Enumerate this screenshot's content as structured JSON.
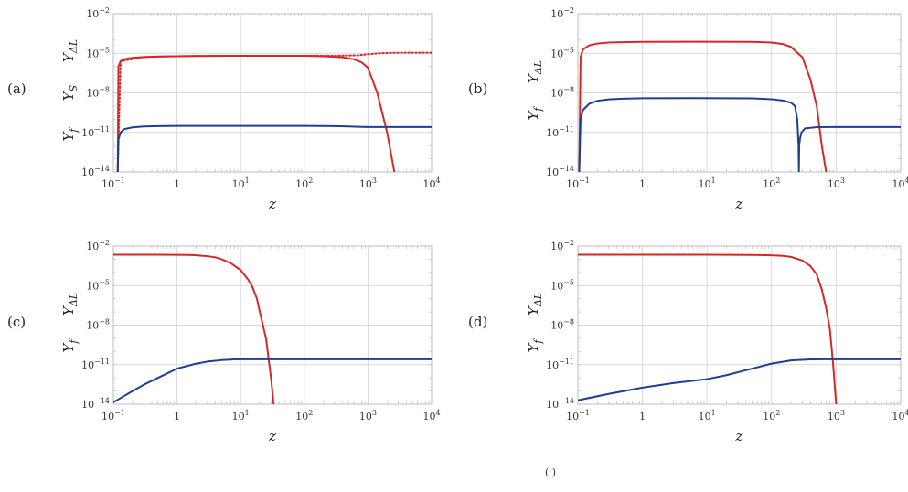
{
  "chart_data": [
    {
      "panel": "(a)",
      "type": "line",
      "xscale": "log",
      "yscale": "log",
      "xlim": [
        0.1,
        10000
      ],
      "ylim": [
        1e-14,
        0.01
      ],
      "x_tick_labels": [
        "10^-1",
        "1",
        "10^1",
        "10^2",
        "10^3",
        "10^4"
      ],
      "y_tick_labels": [
        "10^-14",
        "10^-11",
        "10^-8",
        "10^-5",
        "10^-2"
      ],
      "xlabel": "z",
      "ylabel_parts": [
        "Y_f",
        "Y_S",
        "Y_ΔL"
      ],
      "grid": true,
      "series": [
        {
          "color": "#d62728",
          "style": "solid",
          "x": [
            0.117,
            0.12,
            0.13,
            0.15,
            0.2,
            0.3,
            0.5,
            1,
            2,
            10,
            50,
            100,
            200,
            400,
            600,
            800,
            1000,
            1400,
            2000,
            2600
          ],
          "y": [
            1e-14,
            1e-06,
            2.5e-06,
            3.6e-06,
            4.5e-06,
            5.2e-06,
            5.7e-06,
            6e-06,
            6.3e-06,
            6.5e-06,
            6.5e-06,
            6.4e-06,
            6e-06,
            5e-06,
            3.5e-06,
            2e-06,
            8e-07,
            1e-08,
            1e-11,
            1e-14
          ]
        },
        {
          "color": "#d62728",
          "style": "dotted",
          "x": [
            0.117,
            0.13,
            0.3,
            1,
            10,
            100,
            300,
            700,
            1000,
            1500,
            3000,
            10000
          ],
          "y": [
            1e-14,
            2.5e-06,
            5.2e-06,
            6e-06,
            6.5e-06,
            6.5e-06,
            6.6e-06,
            7e-06,
            8.5e-06,
            1e-05,
            1.1e-05,
            1.1e-05
          ]
        },
        {
          "color": "#1f3f8f",
          "style": "solid",
          "x": [
            0.117,
            0.12,
            0.13,
            0.15,
            0.2,
            0.3,
            0.5,
            1,
            10,
            100,
            300,
            500,
            800,
            1000,
            10000
          ],
          "y": [
            1e-14,
            3e-12,
            1e-11,
            1.8e-11,
            2.4e-11,
            2.8e-11,
            3e-11,
            3.1e-11,
            3.15e-11,
            3.1e-11,
            3e-11,
            2.8e-11,
            2.6e-11,
            2.55e-11,
            2.55e-11
          ]
        }
      ]
    },
    {
      "panel": "(b)",
      "type": "line",
      "xscale": "log",
      "yscale": "log",
      "xlim": [
        0.1,
        10000
      ],
      "ylim": [
        1e-14,
        0.01
      ],
      "x_tick_labels": [
        "10^-1",
        "1",
        "10^1",
        "10^2",
        "10^3",
        "10^4"
      ],
      "y_tick_labels": [
        "10^-14",
        "10^-11",
        "10^-8",
        "10^-5",
        "10^-2"
      ],
      "xlabel": "z",
      "ylabel_parts": [
        "Y_f",
        "Y_ΔL"
      ],
      "grid": true,
      "series": [
        {
          "color": "#d62728",
          "style": "solid",
          "x": [
            0.105,
            0.11,
            0.12,
            0.15,
            0.2,
            0.3,
            0.5,
            1,
            5,
            50,
            100,
            150,
            200,
            300,
            400,
            500,
            600,
            700
          ],
          "y": [
            1e-14,
            5e-06,
            2e-05,
            4e-05,
            5.5e-05,
            6.5e-05,
            7e-05,
            7.3e-05,
            7.5e-05,
            7.3e-05,
            6.5e-05,
            5e-05,
            3e-05,
            5e-06,
            1e-07,
            1e-09,
            1e-12,
            1e-14
          ]
        },
        {
          "color": "#1f3f8f",
          "style": "solid",
          "x": [
            0.105,
            0.11,
            0.12,
            0.15,
            0.2,
            0.3,
            0.5,
            1,
            5,
            50,
            100,
            150,
            200,
            230,
            250,
            262,
            265,
            268,
            275,
            290,
            330,
            500,
            1000,
            10000
          ],
          "y": [
            1e-14,
            1e-10,
            5e-10,
            1.5e-09,
            2.5e-09,
            3.2e-09,
            3.6e-09,
            3.9e-09,
            4e-09,
            3.8e-09,
            3.3e-09,
            2.6e-09,
            1.8e-09,
            1e-09,
            1e-10,
            1e-12,
            1e-14,
            1e-12,
            3e-12,
            1e-11,
            2e-11,
            2.5e-11,
            2.55e-11,
            2.55e-11
          ]
        }
      ]
    },
    {
      "panel": "(c)",
      "type": "line",
      "xscale": "log",
      "yscale": "log",
      "xlim": [
        0.1,
        10000
      ],
      "ylim": [
        1e-14,
        0.01
      ],
      "x_tick_labels": [
        "10^-1",
        "1",
        "10^1",
        "10^2",
        "10^3",
        "10^4"
      ],
      "y_tick_labels": [
        "10^-14",
        "10^-11",
        "10^-8",
        "10^-5",
        "10^-2"
      ],
      "xlabel": "z",
      "ylabel_parts": [
        "Y_f",
        "Y_ΔL"
      ],
      "grid": true,
      "series": [
        {
          "color": "#d62728",
          "style": "solid",
          "x": [
            0.1,
            0.5,
            1,
            1.5,
            2,
            3,
            4,
            5,
            7,
            10,
            13,
            15,
            18,
            20,
            25,
            30,
            33
          ],
          "y": [
            0.0022,
            0.0022,
            0.00215,
            0.0021,
            0.002,
            0.0017,
            0.0014,
            0.001,
            0.0005,
            0.00015,
            3e-05,
            1e-05,
            1e-06,
            1e-07,
            1e-09,
            1e-12,
            1e-14
          ]
        },
        {
          "color": "#1f3f8f",
          "style": "solid",
          "x": [
            0.1,
            0.2,
            0.3,
            0.5,
            1,
            2,
            3,
            5,
            8,
            10,
            15,
            20,
            10000
          ],
          "y": [
            1.4e-14,
            1e-13,
            3e-13,
            1e-12,
            5e-12,
            1.2e-11,
            1.7e-11,
            2.2e-11,
            2.5e-11,
            2.55e-11,
            2.55e-11,
            2.55e-11,
            2.55e-11
          ]
        }
      ]
    },
    {
      "panel": "(d)",
      "type": "line",
      "xscale": "log",
      "yscale": "log",
      "xlim": [
        0.1,
        10000
      ],
      "ylim": [
        1e-14,
        0.01
      ],
      "x_tick_labels": [
        "10^-1",
        "1",
        "10^1",
        "10^2",
        "10^3",
        "10^4"
      ],
      "y_tick_labels": [
        "10^-14",
        "10^-11",
        "10^-8",
        "10^-5",
        "10^-2"
      ],
      "xlabel": "z",
      "ylabel_parts": [
        "Y_f",
        "Y_ΔL"
      ],
      "grid": true,
      "series": [
        {
          "color": "#d62728",
          "style": "solid",
          "x": [
            0.1,
            1,
            10,
            50,
            100,
            150,
            200,
            300,
            400,
            500,
            600,
            700,
            800,
            900,
            1000
          ],
          "y": [
            0.0022,
            0.0022,
            0.0022,
            0.0021,
            0.002,
            0.0018,
            0.0015,
            0.0008,
            0.0003,
            7e-05,
            5e-06,
            2e-07,
            5e-09,
            1e-11,
            1e-14
          ]
        },
        {
          "color": "#1f3f8f",
          "style": "solid",
          "x": [
            0.1,
            0.3,
            1,
            3,
            10,
            20,
            50,
            100,
            200,
            400,
            700,
            10000
          ],
          "y": [
            2e-14,
            6e-14,
            1.8e-13,
            4e-13,
            8e-13,
            1.6e-12,
            5e-12,
            1.2e-11,
            2.1e-11,
            2.5e-11,
            2.55e-11,
            2.55e-11
          ]
        }
      ]
    }
  ],
  "footer_text": "(    )"
}
